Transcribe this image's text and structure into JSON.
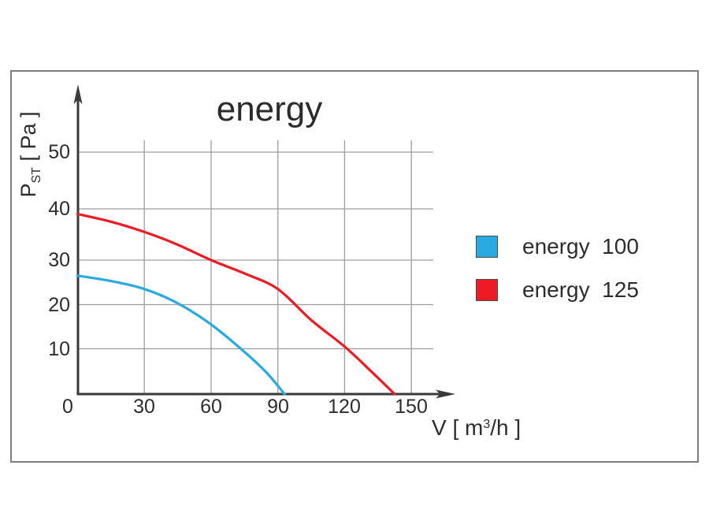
{
  "title": "energy",
  "axes": {
    "y_label_main": "P",
    "y_label_sub": "ST",
    "y_label_unit": " [ Pa ]",
    "x_label_pre": "V [ m",
    "x_label_sup": "3",
    "x_label_post": "/h ]"
  },
  "legend": [
    {
      "label": "energy  100",
      "color": "#29abe2"
    },
    {
      "label": "energy  125",
      "color": "#ed1c24"
    }
  ],
  "chart_data": {
    "type": "line",
    "title": "energy",
    "xlabel": "V [ m3/h ]",
    "ylabel": "PST [ Pa ]",
    "xlim": [
      0,
      168
    ],
    "ylim": [
      0,
      57
    ],
    "x_ticks": [
      0,
      30,
      60,
      90,
      120,
      150
    ],
    "y_ticks": [
      10,
      20,
      30,
      40,
      50
    ],
    "grid": true,
    "grid_color": "#9d9d9d",
    "axis_color": "#3a3a3a",
    "legend_position": "right-outside",
    "series": [
      {
        "name": "energy 100",
        "color": "#29abe2",
        "points": [
          [
            0,
            26.5
          ],
          [
            15,
            25.3
          ],
          [
            30,
            23.5
          ],
          [
            45,
            20.3
          ],
          [
            60,
            15.5
          ],
          [
            75,
            9.3
          ],
          [
            85,
            4.7
          ],
          [
            93,
            0
          ]
        ]
      },
      {
        "name": "energy 125",
        "color": "#ed1c24",
        "points": [
          [
            0,
            39
          ],
          [
            15,
            37.5
          ],
          [
            30,
            35.5
          ],
          [
            45,
            33
          ],
          [
            60,
            30
          ],
          [
            75,
            27
          ],
          [
            90,
            23.5
          ],
          [
            105,
            16.5
          ],
          [
            120,
            10.5
          ],
          [
            132,
            5
          ],
          [
            142.5,
            0
          ]
        ]
      }
    ]
  }
}
